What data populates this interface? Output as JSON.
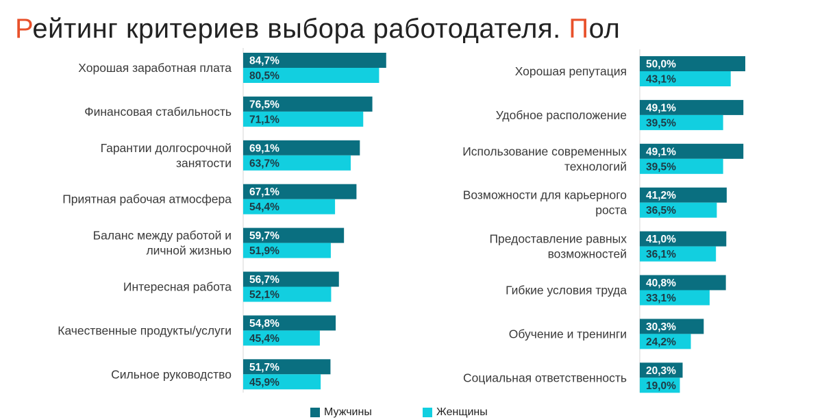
{
  "title": {
    "first_letter": "Р",
    "middle": "ейтинг критериев выбора работодателя. ",
    "second_accent": "П",
    "end": "ол"
  },
  "colors": {
    "men": "#0a6f80",
    "women": "#12cfe0",
    "accent": "#e8512b",
    "value_text_men": "#ffffff",
    "value_text_women": "#1e3a44"
  },
  "legend": {
    "men": "Мужчины",
    "women": "Женщины"
  },
  "chart_data": [
    {
      "type": "bar",
      "orientation": "horizontal",
      "title": "",
      "xlabel": "",
      "ylabel": "",
      "xlim": [
        0,
        100
      ],
      "grid": false,
      "legend_position": "bottom-center",
      "categories": [
        [
          "Хорошая заработная плата"
        ],
        [
          "Финансовая стабильность"
        ],
        [
          "Гарантии долгосрочной",
          "занятости"
        ],
        [
          "Приятная рабочая атмосфера"
        ],
        [
          "Баланс между работой и",
          "личной жизнью"
        ],
        [
          "Интересная работа"
        ],
        [
          "Качественные продукты/услуги"
        ],
        [
          "Сильное руководство"
        ]
      ],
      "series": [
        {
          "name": "Мужчины",
          "values": [
            84.7,
            76.5,
            69.1,
            67.1,
            59.7,
            56.7,
            54.8,
            51.7
          ],
          "labels": [
            "84,7%",
            "76,5%",
            "69,1%",
            "67,1%",
            "59,7%",
            "56,7%",
            "54,8%",
            "51,7%"
          ]
        },
        {
          "name": "Женщины",
          "values": [
            80.5,
            71.1,
            63.7,
            54.4,
            51.9,
            52.1,
            45.4,
            45.9
          ],
          "labels": [
            "80,5%",
            "71,1%",
            "63,7%",
            "54,4%",
            "51,9%",
            "52,1%",
            "45,4%",
            "45,9%"
          ]
        }
      ]
    },
    {
      "type": "bar",
      "orientation": "horizontal",
      "title": "",
      "xlabel": "",
      "ylabel": "",
      "xlim": [
        0,
        100
      ],
      "grid": false,
      "legend_position": "bottom-center",
      "categories": [
        [
          "Хорошая репутация"
        ],
        [
          "Удобное расположение"
        ],
        [
          "Использование современных",
          "технологий"
        ],
        [
          "Возможности для карьерного",
          "роста"
        ],
        [
          "Предоставление равных",
          "возможностей"
        ],
        [
          "Гибкие условия труда"
        ],
        [
          "Обучение и тренинги"
        ],
        [
          "Социальная ответственность"
        ]
      ],
      "series": [
        {
          "name": "Мужчины",
          "values": [
            50.0,
            49.1,
            49.1,
            41.2,
            41.0,
            40.8,
            30.3,
            20.3
          ],
          "labels": [
            "50,0%",
            "49,1%",
            "49,1%",
            "41,2%",
            "41,0%",
            "40,8%",
            "30,3%",
            "20,3%"
          ]
        },
        {
          "name": "Женщины",
          "values": [
            43.1,
            39.5,
            39.5,
            36.5,
            36.1,
            33.1,
            24.2,
            19.0
          ],
          "labels": [
            "43,1%",
            "39,5%",
            "39,5%",
            "36,5%",
            "36,1%",
            "33,1%",
            "24,2%",
            "19,0%"
          ]
        }
      ]
    }
  ]
}
